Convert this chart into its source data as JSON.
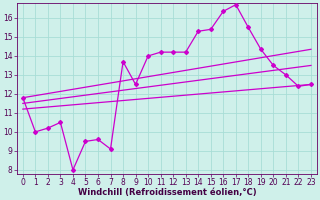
{
  "xlabel": "Windchill (Refroidissement éolien,°C)",
  "xlim": [
    -0.5,
    23.5
  ],
  "ylim": [
    7.8,
    16.8
  ],
  "xticks": [
    0,
    1,
    2,
    3,
    4,
    5,
    6,
    7,
    8,
    9,
    10,
    11,
    12,
    13,
    14,
    15,
    16,
    17,
    18,
    19,
    20,
    21,
    22,
    23
  ],
  "yticks": [
    8,
    9,
    10,
    11,
    12,
    13,
    14,
    15,
    16
  ],
  "bg_color": "#cff0ea",
  "grid_color": "#a8ddd6",
  "line_color": "#cc00cc",
  "main_x": [
    0,
    1,
    2,
    3,
    4,
    5,
    6,
    7,
    8,
    9,
    10,
    11,
    12,
    13,
    14,
    15,
    16,
    17,
    18,
    19,
    20,
    21,
    22,
    23
  ],
  "main_y": [
    11.8,
    10.0,
    10.2,
    10.5,
    8.0,
    9.5,
    9.6,
    9.1,
    13.7,
    12.5,
    14.0,
    14.2,
    14.2,
    14.2,
    15.3,
    15.4,
    16.35,
    16.7,
    15.5,
    14.35,
    13.5,
    13.0,
    12.4,
    12.5
  ],
  "trend1_x": [
    0,
    23
  ],
  "trend1_y": [
    11.8,
    14.35
  ],
  "trend2_x": [
    0,
    23
  ],
  "trend2_y": [
    11.5,
    13.5
  ],
  "trend3_x": [
    0,
    23
  ],
  "trend3_y": [
    11.2,
    12.5
  ],
  "tick_fontsize": 5.5,
  "label_fontsize": 6.0
}
